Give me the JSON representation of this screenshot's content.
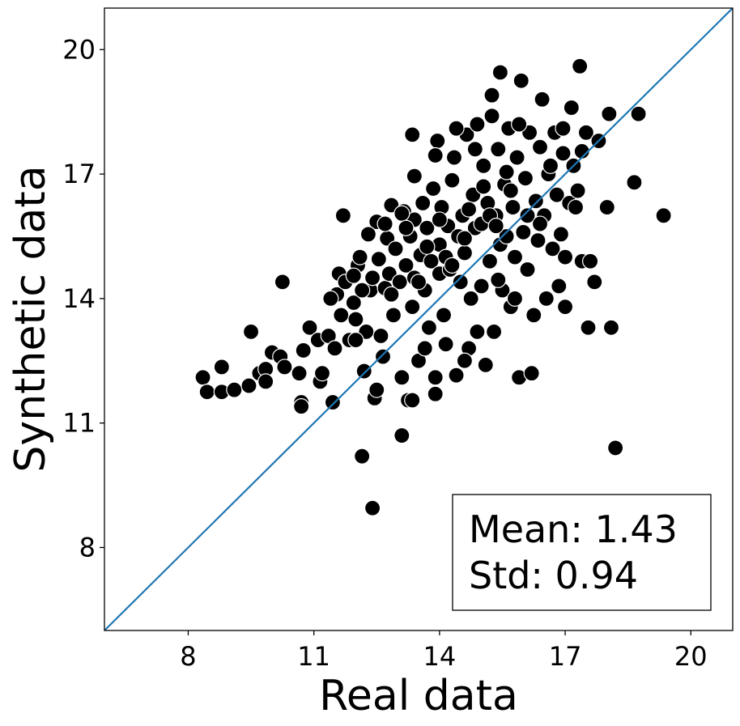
{
  "chart_data": {
    "type": "scatter",
    "xlabel": "Real data",
    "ylabel": "Synthetic data",
    "xlim": [
      6,
      21
    ],
    "ylim": [
      6,
      21
    ],
    "xticks": [
      8,
      11,
      14,
      17,
      20
    ],
    "yticks": [
      8,
      11,
      14,
      17,
      20
    ],
    "grid": false,
    "reference_line": {
      "x": [
        6,
        21
      ],
      "y": [
        6,
        21
      ],
      "color": "#1f77b4"
    },
    "marker_color": "#000000",
    "marker_edge": "#ffffff",
    "stats": {
      "mean": "Mean: 1.43",
      "std": "Std: 0.94",
      "placement": "bottom-right"
    },
    "points": [
      [
        8.35,
        12.1
      ],
      [
        8.45,
        11.75
      ],
      [
        8.8,
        12.35
      ],
      [
        8.8,
        11.75
      ],
      [
        9.1,
        11.8
      ],
      [
        9.45,
        11.9
      ],
      [
        9.5,
        13.2
      ],
      [
        9.7,
        12.2
      ],
      [
        9.85,
        12.3
      ],
      [
        9.85,
        12.0
      ],
      [
        10.0,
        12.7
      ],
      [
        10.2,
        12.6
      ],
      [
        10.3,
        12.35
      ],
      [
        10.25,
        14.4
      ],
      [
        10.65,
        12.2
      ],
      [
        10.7,
        11.5
      ],
      [
        10.7,
        11.4
      ],
      [
        10.75,
        12.75
      ],
      [
        10.9,
        13.3
      ],
      [
        11.1,
        13.0
      ],
      [
        11.15,
        12.0
      ],
      [
        11.2,
        12.2
      ],
      [
        11.35,
        13.1
      ],
      [
        11.45,
        11.5
      ],
      [
        11.5,
        12.8
      ],
      [
        11.55,
        14.1
      ],
      [
        11.6,
        14.6
      ],
      [
        11.65,
        13.6
      ],
      [
        11.7,
        16.0
      ],
      [
        11.75,
        14.4
      ],
      [
        11.85,
        13.0
      ],
      [
        11.95,
        13.9
      ],
      [
        12.0,
        13.5
      ],
      [
        12.05,
        14.8
      ],
      [
        12.1,
        15.0
      ],
      [
        12.15,
        10.2
      ],
      [
        12.2,
        12.25
      ],
      [
        12.25,
        13.2
      ],
      [
        12.35,
        14.2
      ],
      [
        12.4,
        14.5
      ],
      [
        12.45,
        11.6
      ],
      [
        12.5,
        15.85
      ],
      [
        12.5,
        11.8
      ],
      [
        12.4,
        8.95
      ],
      [
        12.55,
        14.95
      ],
      [
        12.6,
        13.1
      ],
      [
        12.65,
        12.6
      ],
      [
        12.7,
        14.25
      ],
      [
        12.75,
        15.45
      ],
      [
        12.8,
        14.6
      ],
      [
        12.85,
        16.25
      ],
      [
        12.9,
        13.6
      ],
      [
        12.95,
        15.2
      ],
      [
        13.05,
        14.4
      ],
      [
        13.1,
        12.1
      ],
      [
        13.15,
        16.1
      ],
      [
        13.2,
        14.8
      ],
      [
        13.25,
        11.55
      ],
      [
        13.1,
        10.7
      ],
      [
        13.3,
        15.5
      ],
      [
        13.35,
        13.8
      ],
      [
        13.35,
        11.55
      ],
      [
        13.4,
        14.5
      ],
      [
        13.4,
        15.9
      ],
      [
        13.35,
        17.95
      ],
      [
        13.5,
        12.5
      ],
      [
        13.55,
        15.05
      ],
      [
        13.6,
        16.3
      ],
      [
        13.65,
        14.2
      ],
      [
        13.65,
        12.8
      ],
      [
        13.7,
        15.7
      ],
      [
        13.75,
        13.3
      ],
      [
        13.8,
        14.9
      ],
      [
        13.85,
        16.65
      ],
      [
        13.9,
        12.1
      ],
      [
        13.9,
        11.7
      ],
      [
        13.95,
        17.8
      ],
      [
        14.0,
        14.6
      ],
      [
        14.0,
        15.3
      ],
      [
        14.05,
        16.2
      ],
      [
        14.1,
        13.6
      ],
      [
        14.15,
        12.9
      ],
      [
        14.2,
        15.75
      ],
      [
        14.25,
        14.7
      ],
      [
        14.3,
        16.85
      ],
      [
        14.35,
        17.4
      ],
      [
        14.4,
        12.15
      ],
      [
        14.45,
        15.5
      ],
      [
        14.5,
        14.4
      ],
      [
        14.55,
        16.0
      ],
      [
        14.6,
        15.1
      ],
      [
        14.65,
        17.95
      ],
      [
        14.7,
        12.8
      ],
      [
        14.75,
        14.0
      ],
      [
        14.8,
        16.5
      ],
      [
        14.85,
        15.7
      ],
      [
        14.9,
        18.2
      ],
      [
        14.9,
        13.2
      ],
      [
        15.0,
        14.3
      ],
      [
        15.0,
        15.8
      ],
      [
        15.05,
        17.2
      ],
      [
        15.1,
        12.4
      ],
      [
        15.15,
        16.3
      ],
      [
        15.2,
        14.9
      ],
      [
        15.25,
        18.4
      ],
      [
        15.3,
        13.2
      ],
      [
        15.35,
        16.0
      ],
      [
        15.4,
        17.6
      ],
      [
        15.45,
        15.3
      ],
      [
        15.45,
        19.45
      ],
      [
        15.5,
        14.2
      ],
      [
        15.55,
        16.75
      ],
      [
        15.6,
        15.5
      ],
      [
        15.65,
        18.1
      ],
      [
        15.7,
        13.8
      ],
      [
        15.75,
        16.2
      ],
      [
        15.8,
        15.0
      ],
      [
        15.85,
        17.4
      ],
      [
        15.9,
        12.1
      ],
      [
        15.95,
        19.25
      ],
      [
        16.0,
        15.6
      ],
      [
        16.05,
        16.9
      ],
      [
        16.1,
        14.7
      ],
      [
        16.15,
        18.0
      ],
      [
        16.2,
        12.2
      ],
      [
        16.25,
        13.6
      ],
      [
        16.3,
        16.35
      ],
      [
        16.35,
        15.4
      ],
      [
        16.4,
        17.65
      ],
      [
        16.45,
        18.8
      ],
      [
        16.5,
        16.0
      ],
      [
        16.55,
        14.0
      ],
      [
        16.6,
        17.0
      ],
      [
        16.7,
        15.2
      ],
      [
        16.75,
        18.0
      ],
      [
        16.8,
        16.5
      ],
      [
        16.85,
        14.3
      ],
      [
        16.95,
        17.5
      ],
      [
        17.0,
        15.0
      ],
      [
        17.1,
        16.3
      ],
      [
        17.15,
        18.6
      ],
      [
        17.2,
        17.2
      ],
      [
        17.3,
        16.6
      ],
      [
        17.35,
        19.6
      ],
      [
        17.4,
        14.9
      ],
      [
        17.5,
        18.0
      ],
      [
        17.55,
        13.3
      ],
      [
        17.6,
        14.9
      ],
      [
        17.7,
        14.4
      ],
      [
        17.8,
        17.8
      ],
      [
        18.0,
        16.2
      ],
      [
        18.05,
        18.45
      ],
      [
        18.1,
        13.3
      ],
      [
        18.2,
        10.4
      ],
      [
        18.65,
        16.8
      ],
      [
        18.75,
        18.45
      ],
      [
        19.35,
        16.0
      ],
      [
        17.0,
        13.8
      ],
      [
        15.8,
        14.0
      ],
      [
        14.6,
        12.5
      ],
      [
        13.1,
        16.05
      ],
      [
        12.85,
        14.1
      ],
      [
        11.95,
        14.55
      ],
      [
        11.4,
        14.0
      ],
      [
        12.3,
        15.55
      ],
      [
        13.9,
        17.45
      ],
      [
        14.4,
        18.1
      ],
      [
        15.25,
        18.9
      ],
      [
        16.65,
        17.2
      ],
      [
        17.25,
        16.2
      ],
      [
        15.6,
        17.05
      ],
      [
        14.15,
        15.0
      ],
      [
        15.05,
        16.7
      ],
      [
        16.9,
        15.55
      ],
      [
        15.4,
        14.45
      ],
      [
        14.7,
        16.15
      ],
      [
        13.2,
        15.7
      ],
      [
        12.0,
        13.0
      ],
      [
        15.2,
        16.0
      ],
      [
        14.0,
        15.9
      ],
      [
        16.1,
        16.0
      ],
      [
        13.5,
        14.4
      ],
      [
        14.6,
        15.45
      ],
      [
        15.7,
        16.6
      ],
      [
        16.4,
        15.8
      ],
      [
        13.7,
        15.25
      ],
      [
        12.7,
        15.8
      ],
      [
        14.3,
        14.8
      ],
      [
        15.9,
        18.2
      ],
      [
        17.4,
        17.55
      ],
      [
        14.85,
        17.6
      ],
      [
        13.4,
        16.95
      ],
      [
        16.95,
        18.1
      ],
      [
        15.35,
        15.75
      ],
      [
        12.15,
        14.2
      ]
    ]
  }
}
